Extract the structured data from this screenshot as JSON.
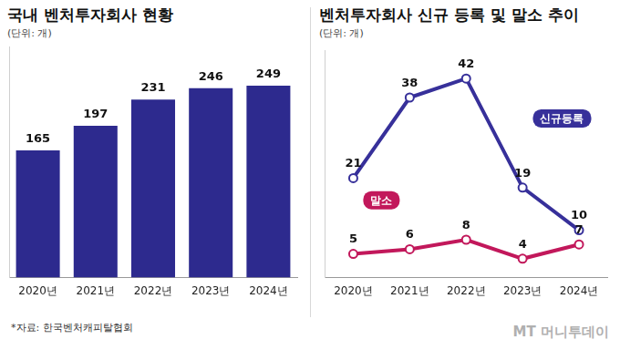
{
  "chart_data": [
    {
      "type": "bar",
      "title": "국내 벤처투자회사 현황",
      "subtitle": "(단위: 개)",
      "categories": [
        "2020년",
        "2021년",
        "2022년",
        "2023년",
        "2024년"
      ],
      "values": [
        165,
        197,
        231,
        246,
        249
      ],
      "color": "#2d2a8e",
      "ylim": [
        0,
        300
      ],
      "yticks": [],
      "grid": false,
      "data_labels": true,
      "tick_labels": "x"
    },
    {
      "type": "line",
      "title": "벤처투자회사 신규 등록 및 말소 추이",
      "subtitle": "(단위: 개)",
      "categories": [
        "2020년",
        "2021년",
        "2022년",
        "2023년",
        "2024년"
      ],
      "series": [
        {
          "name": "신규등록",
          "color": "#37309a",
          "values": [
            21,
            38,
            42,
            19,
            10
          ]
        },
        {
          "name": "말소",
          "color": "#c2185b",
          "values": [
            5,
            6,
            8,
            4,
            7
          ]
        }
      ],
      "ylim": [
        0,
        48
      ],
      "yticks": [],
      "grid": false,
      "data_labels": true,
      "tick_labels": "x",
      "marker": "circle"
    }
  ],
  "source": "*자료: 한국벤처캐피탈협회",
  "watermark": "MT 머니투데이"
}
